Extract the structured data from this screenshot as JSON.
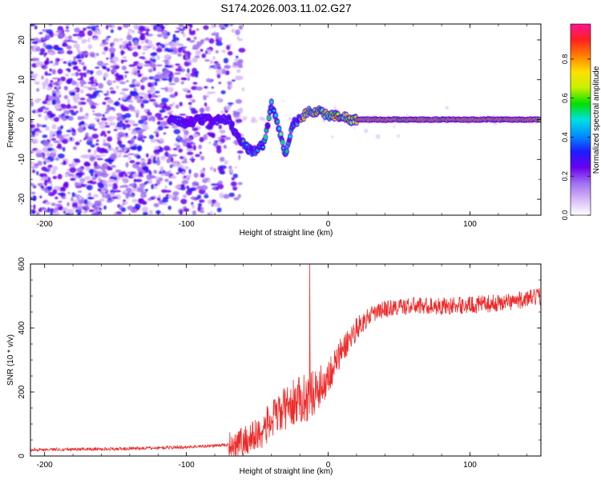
{
  "chart_data": [
    {
      "type": "heatmap",
      "title": "S174.2026.003.11.02.G27",
      "xlabel": "Height of straight line (km)",
      "ylabel": "Frequency (Hz)",
      "xlim": [
        -210,
        150
      ],
      "ylim": [
        -24,
        24
      ],
      "xticks": [
        -200,
        -100,
        0,
        100
      ],
      "yticks": [
        -20,
        -10,
        0,
        10,
        20
      ],
      "colorbar": {
        "label": "Normalized spectral amplitude",
        "range": [
          0.0,
          0.98
        ],
        "ticks": [
          0.0,
          0.2,
          0.4,
          0.6,
          0.8
        ],
        "colors": [
          "#ffffff",
          "#d8b8f8",
          "#a070f0",
          "#6a00f0",
          "#1c1cff",
          "#0090ff",
          "#00e0e0",
          "#00e000",
          "#c8f000",
          "#ffe000",
          "#ff8000",
          "#ff2020",
          "#ff1493"
        ]
      },
      "ridge": {
        "description_points_x": [
          -110,
          -100,
          -90,
          -80,
          -70,
          -65,
          -58,
          -52,
          -45,
          -40,
          -35,
          -30,
          -25,
          -20,
          -15,
          -10,
          -5,
          0,
          5,
          10,
          15,
          20,
          40,
          60,
          80,
          100,
          120,
          150
        ],
        "description_points_y": [
          0,
          -1,
          0,
          0,
          0,
          -4,
          -7,
          -8,
          -6,
          4,
          -2,
          -9,
          -1,
          0,
          2,
          2,
          2,
          1,
          1,
          1,
          0,
          0,
          0,
          0,
          0,
          0,
          0,
          0
        ]
      }
    },
    {
      "type": "line",
      "xlabel": "Height of straight line (km)",
      "ylabel": "SNR (10 * v/v)",
      "xlim": [
        -210,
        150
      ],
      "ylim": [
        0,
        600
      ],
      "xticks": [
        -200,
        -100,
        0,
        100
      ],
      "yticks": [
        0,
        200,
        400,
        600
      ],
      "color": "#ee2a2a",
      "envelope_x": [
        -210,
        -150,
        -100,
        -70,
        -60,
        -50,
        -40,
        -30,
        -25,
        -20,
        -15,
        -10,
        -5,
        0,
        10,
        20,
        30,
        40,
        60,
        80,
        100,
        120,
        140,
        150
      ],
      "envelope_y": [
        20,
        22,
        28,
        35,
        45,
        65,
        110,
        150,
        165,
        175,
        185,
        200,
        220,
        250,
        330,
        400,
        440,
        460,
        470,
        468,
        472,
        478,
        490,
        500
      ],
      "spike": {
        "x": -13,
        "y": 600
      }
    }
  ]
}
